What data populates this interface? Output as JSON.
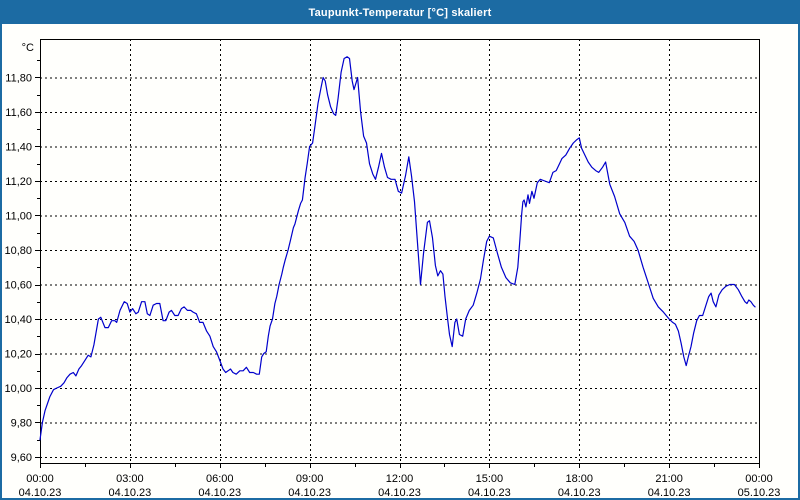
{
  "window": {
    "title": "Taupunkt-Temperatur [°C] skaliert",
    "title_bar_color": "#1c6ba3",
    "border_color": "#1c6ba3",
    "background_color": "#fffffc"
  },
  "chart_data": {
    "type": "line",
    "title": "Taupunkt-Temperatur [°C] skaliert",
    "ylabel": "°C",
    "xlabel": "",
    "grid": "dashed-black",
    "legend_position": "none",
    "frame_color": "#000000",
    "line_color": "#0000cc",
    "x_range_hours": [
      0,
      24
    ],
    "ylim": [
      9.57,
      12.02
    ],
    "y_ticks": [
      {
        "value": 9.6,
        "label": "9,60"
      },
      {
        "value": 9.8,
        "label": "9,80"
      },
      {
        "value": 10.0,
        "label": "10,00"
      },
      {
        "value": 10.2,
        "label": "10,20"
      },
      {
        "value": 10.4,
        "label": "10,40"
      },
      {
        "value": 10.6,
        "label": "10,60"
      },
      {
        "value": 10.8,
        "label": "10,80"
      },
      {
        "value": 11.0,
        "label": "11,00"
      },
      {
        "value": 11.2,
        "label": "11,20"
      },
      {
        "value": 11.4,
        "label": "11,40"
      },
      {
        "value": 11.6,
        "label": "11,60"
      },
      {
        "value": 11.8,
        "label": "11,80"
      }
    ],
    "x_ticks": [
      {
        "hour": 0,
        "time": "00:00",
        "date": "04.10.23"
      },
      {
        "hour": 3,
        "time": "03:00",
        "date": "04.10.23"
      },
      {
        "hour": 6,
        "time": "06:00",
        "date": "04.10.23"
      },
      {
        "hour": 9,
        "time": "09:00",
        "date": "04.10.23"
      },
      {
        "hour": 12,
        "time": "12:00",
        "date": "04.10.23"
      },
      {
        "hour": 15,
        "time": "15:00",
        "date": "04.10.23"
      },
      {
        "hour": 18,
        "time": "18:00",
        "date": "04.10.23"
      },
      {
        "hour": 21,
        "time": "21:00",
        "date": "04.10.23"
      },
      {
        "hour": 24,
        "time": "00:00",
        "date": "05.10.23"
      }
    ],
    "x_minor_tick_step_hours": 1.5,
    "y_minor_tick_step": 0.1,
    "series": [
      {
        "name": "Taupunkt-Temperatur",
        "color": "#0000cc",
        "points": [
          [
            0.0,
            9.7
          ],
          [
            0.08,
            9.8
          ],
          [
            0.17,
            9.87
          ],
          [
            0.25,
            9.91
          ],
          [
            0.33,
            9.95
          ],
          [
            0.45,
            9.99
          ],
          [
            0.56,
            10.0
          ],
          [
            0.69,
            10.01
          ],
          [
            0.8,
            10.03
          ],
          [
            0.9,
            10.06
          ],
          [
            1.0,
            10.08
          ],
          [
            1.11,
            10.09
          ],
          [
            1.2,
            10.07
          ],
          [
            1.3,
            10.11
          ],
          [
            1.39,
            10.13
          ],
          [
            1.5,
            10.16
          ],
          [
            1.61,
            10.19
          ],
          [
            1.7,
            10.18
          ],
          [
            1.8,
            10.25
          ],
          [
            1.95,
            10.4
          ],
          [
            2.03,
            10.41
          ],
          [
            2.17,
            10.35
          ],
          [
            2.28,
            10.35
          ],
          [
            2.39,
            10.39
          ],
          [
            2.5,
            10.39
          ],
          [
            2.56,
            10.38
          ],
          [
            2.67,
            10.45
          ],
          [
            2.81,
            10.5
          ],
          [
            2.91,
            10.49
          ],
          [
            3.0,
            10.44
          ],
          [
            3.09,
            10.46
          ],
          [
            3.2,
            10.43
          ],
          [
            3.28,
            10.44
          ],
          [
            3.39,
            10.5
          ],
          [
            3.5,
            10.5
          ],
          [
            3.58,
            10.43
          ],
          [
            3.67,
            10.42
          ],
          [
            3.78,
            10.48
          ],
          [
            3.89,
            10.49
          ],
          [
            4.0,
            10.49
          ],
          [
            4.11,
            10.39
          ],
          [
            4.2,
            10.39
          ],
          [
            4.31,
            10.44
          ],
          [
            4.39,
            10.45
          ],
          [
            4.5,
            10.42
          ],
          [
            4.61,
            10.42
          ],
          [
            4.72,
            10.46
          ],
          [
            4.81,
            10.47
          ],
          [
            4.92,
            10.45
          ],
          [
            5.03,
            10.45
          ],
          [
            5.11,
            10.44
          ],
          [
            5.22,
            10.43
          ],
          [
            5.33,
            10.38
          ],
          [
            5.44,
            10.38
          ],
          [
            5.56,
            10.33
          ],
          [
            5.67,
            10.3
          ],
          [
            5.78,
            10.24
          ],
          [
            5.89,
            10.21
          ],
          [
            6.0,
            10.16
          ],
          [
            6.11,
            10.11
          ],
          [
            6.2,
            10.09
          ],
          [
            6.28,
            10.1
          ],
          [
            6.36,
            10.11
          ],
          [
            6.44,
            10.09
          ],
          [
            6.55,
            10.08
          ],
          [
            6.67,
            10.1
          ],
          [
            6.78,
            10.1
          ],
          [
            6.89,
            10.12
          ],
          [
            7.0,
            10.09
          ],
          [
            7.12,
            10.09
          ],
          [
            7.23,
            10.08
          ],
          [
            7.32,
            10.08
          ],
          [
            7.4,
            10.18
          ],
          [
            7.47,
            10.2
          ],
          [
            7.55,
            10.21
          ],
          [
            7.62,
            10.3
          ],
          [
            7.68,
            10.36
          ],
          [
            7.76,
            10.4
          ],
          [
            7.84,
            10.49
          ],
          [
            7.9,
            10.53
          ],
          [
            7.98,
            10.6
          ],
          [
            8.07,
            10.66
          ],
          [
            8.12,
            10.7
          ],
          [
            8.18,
            10.74
          ],
          [
            8.28,
            10.8
          ],
          [
            8.35,
            10.85
          ],
          [
            8.46,
            10.93
          ],
          [
            8.51,
            10.95
          ],
          [
            8.57,
            10.99
          ],
          [
            8.63,
            11.03
          ],
          [
            8.7,
            11.07
          ],
          [
            8.76,
            11.09
          ],
          [
            8.85,
            11.22
          ],
          [
            8.92,
            11.3
          ],
          [
            9.0,
            11.4
          ],
          [
            9.05,
            11.41
          ],
          [
            9.1,
            11.42
          ],
          [
            9.18,
            11.52
          ],
          [
            9.28,
            11.65
          ],
          [
            9.38,
            11.74
          ],
          [
            9.45,
            11.8
          ],
          [
            9.52,
            11.78
          ],
          [
            9.6,
            11.7
          ],
          [
            9.7,
            11.63
          ],
          [
            9.8,
            11.59
          ],
          [
            9.87,
            11.58
          ],
          [
            9.95,
            11.68
          ],
          [
            10.05,
            11.83
          ],
          [
            10.15,
            11.91
          ],
          [
            10.25,
            11.92
          ],
          [
            10.33,
            11.91
          ],
          [
            10.42,
            11.78
          ],
          [
            10.48,
            11.73
          ],
          [
            10.55,
            11.77
          ],
          [
            10.6,
            11.8
          ],
          [
            10.7,
            11.6
          ],
          [
            10.8,
            11.46
          ],
          [
            10.9,
            11.42
          ],
          [
            11.0,
            11.3
          ],
          [
            11.11,
            11.24
          ],
          [
            11.2,
            11.21
          ],
          [
            11.3,
            11.28
          ],
          [
            11.4,
            11.36
          ],
          [
            11.5,
            11.28
          ],
          [
            11.6,
            11.22
          ],
          [
            11.72,
            11.21
          ],
          [
            11.85,
            11.21
          ],
          [
            11.96,
            11.14
          ],
          [
            12.07,
            11.13
          ],
          [
            12.2,
            11.23
          ],
          [
            12.31,
            11.34
          ],
          [
            12.4,
            11.23
          ],
          [
            12.5,
            11.08
          ],
          [
            12.6,
            10.84
          ],
          [
            12.7,
            10.6
          ],
          [
            12.8,
            10.78
          ],
          [
            12.93,
            10.96
          ],
          [
            13.0,
            10.97
          ],
          [
            13.1,
            10.87
          ],
          [
            13.2,
            10.71
          ],
          [
            13.28,
            10.65
          ],
          [
            13.37,
            10.68
          ],
          [
            13.45,
            10.66
          ],
          [
            13.52,
            10.53
          ],
          [
            13.6,
            10.41
          ],
          [
            13.67,
            10.31
          ],
          [
            13.76,
            10.24
          ],
          [
            13.85,
            10.38
          ],
          [
            13.91,
            10.4
          ],
          [
            14.0,
            10.31
          ],
          [
            14.11,
            10.3
          ],
          [
            14.21,
            10.4
          ],
          [
            14.33,
            10.45
          ],
          [
            14.46,
            10.48
          ],
          [
            14.58,
            10.55
          ],
          [
            14.7,
            10.63
          ],
          [
            14.8,
            10.74
          ],
          [
            14.91,
            10.85
          ],
          [
            15.0,
            10.88
          ],
          [
            15.13,
            10.87
          ],
          [
            15.27,
            10.78
          ],
          [
            15.4,
            10.7
          ],
          [
            15.55,
            10.64
          ],
          [
            15.7,
            10.61
          ],
          [
            15.85,
            10.6
          ],
          [
            15.95,
            10.7
          ],
          [
            16.02,
            10.86
          ],
          [
            16.08,
            11.01
          ],
          [
            16.12,
            11.08
          ],
          [
            16.16,
            11.09
          ],
          [
            16.22,
            11.05
          ],
          [
            16.29,
            11.12
          ],
          [
            16.34,
            11.07
          ],
          [
            16.42,
            11.14
          ],
          [
            16.49,
            11.1
          ],
          [
            16.6,
            11.19
          ],
          [
            16.7,
            11.21
          ],
          [
            16.85,
            11.2
          ],
          [
            17.0,
            11.19
          ],
          [
            17.12,
            11.25
          ],
          [
            17.23,
            11.26
          ],
          [
            17.34,
            11.3
          ],
          [
            17.42,
            11.33
          ],
          [
            17.55,
            11.35
          ],
          [
            17.68,
            11.39
          ],
          [
            17.8,
            11.42
          ],
          [
            17.92,
            11.44
          ],
          [
            18.0,
            11.45
          ],
          [
            18.08,
            11.39
          ],
          [
            18.19,
            11.35
          ],
          [
            18.3,
            11.31
          ],
          [
            18.42,
            11.28
          ],
          [
            18.55,
            11.26
          ],
          [
            18.65,
            11.25
          ],
          [
            18.78,
            11.28
          ],
          [
            18.88,
            11.31
          ],
          [
            19.02,
            11.18
          ],
          [
            19.18,
            11.11
          ],
          [
            19.35,
            11.01
          ],
          [
            19.52,
            10.96
          ],
          [
            19.68,
            10.88
          ],
          [
            19.83,
            10.85
          ],
          [
            19.96,
            10.8
          ],
          [
            20.13,
            10.7
          ],
          [
            20.3,
            10.61
          ],
          [
            20.47,
            10.52
          ],
          [
            20.64,
            10.47
          ],
          [
            20.81,
            10.44
          ],
          [
            21.0,
            10.4
          ],
          [
            21.12,
            10.38
          ],
          [
            21.21,
            10.37
          ],
          [
            21.31,
            10.33
          ],
          [
            21.4,
            10.26
          ],
          [
            21.49,
            10.18
          ],
          [
            21.57,
            10.13
          ],
          [
            21.64,
            10.18
          ],
          [
            21.73,
            10.24
          ],
          [
            21.82,
            10.32
          ],
          [
            21.92,
            10.39
          ],
          [
            22.01,
            10.42
          ],
          [
            22.12,
            10.42
          ],
          [
            22.21,
            10.47
          ],
          [
            22.32,
            10.53
          ],
          [
            22.4,
            10.55
          ],
          [
            22.47,
            10.5
          ],
          [
            22.56,
            10.47
          ],
          [
            22.66,
            10.54
          ],
          [
            22.77,
            10.57
          ],
          [
            22.9,
            10.59
          ],
          [
            23.03,
            10.6
          ],
          [
            23.18,
            10.6
          ],
          [
            23.31,
            10.57
          ],
          [
            23.43,
            10.53
          ],
          [
            23.53,
            10.5
          ],
          [
            23.6,
            10.49
          ],
          [
            23.66,
            10.51
          ],
          [
            23.73,
            10.5
          ],
          [
            23.81,
            10.48
          ],
          [
            23.87,
            10.47
          ]
        ]
      }
    ]
  }
}
